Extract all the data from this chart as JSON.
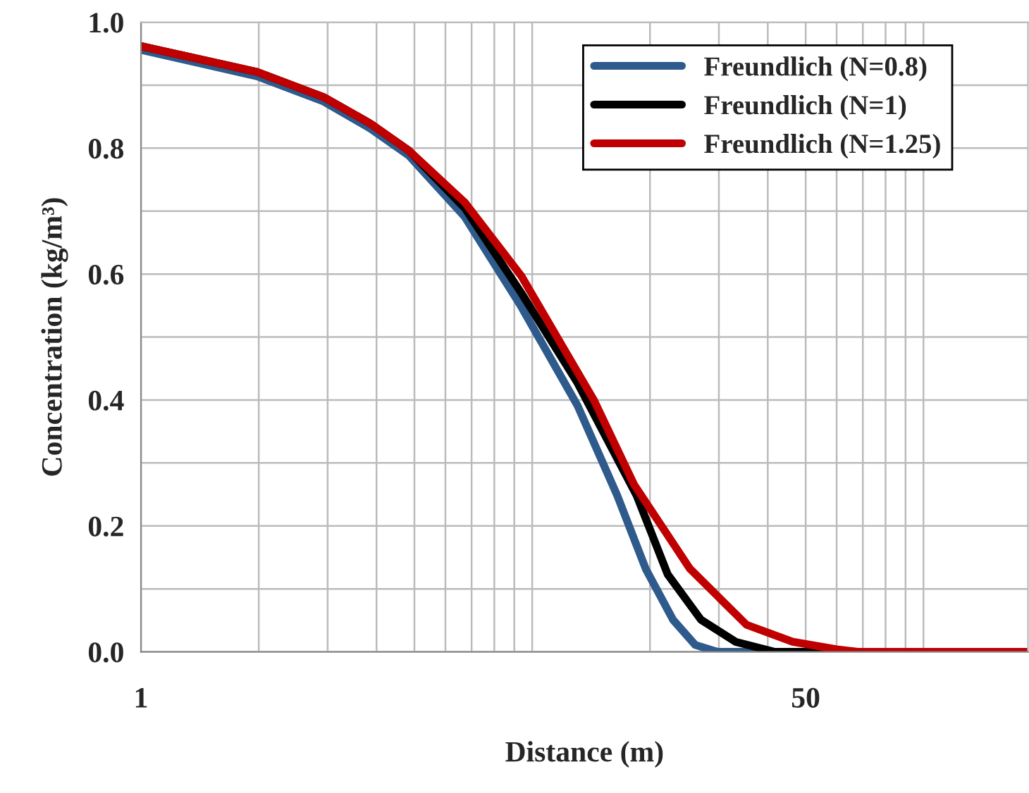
{
  "chart_data": {
    "type": "line",
    "xlabel": "Distance (m)",
    "ylabel": "Concentration (kg/m³)",
    "log": "x",
    "grid": true,
    "legend": "top right",
    "line_style": "solid",
    "marker": "none",
    "xlim": [
      1,
      185
    ],
    "ylim": [
      0,
      1.0
    ],
    "xticks": [
      1,
      {
        "value": 2,
        "label": null
      },
      {
        "value": 3,
        "label": null
      },
      {
        "value": 4,
        "label": null
      },
      {
        "value": 5,
        "label": null
      },
      {
        "value": 6,
        "label": null
      },
      {
        "value": 7,
        "label": null
      },
      {
        "value": 8,
        "label": null
      },
      {
        "value": 9,
        "label": null
      },
      {
        "value": 10,
        "label": null
      },
      {
        "value": 20,
        "label": null
      },
      {
        "value": 30,
        "label": null
      },
      {
        "value": 40,
        "label": null
      },
      50,
      {
        "value": 60,
        "label": null
      },
      {
        "value": 70,
        "label": null
      },
      {
        "value": 80,
        "label": null
      },
      {
        "value": 90,
        "label": null
      },
      {
        "value": 100,
        "label": null
      }
    ],
    "yticks": [
      {
        "value": 0,
        "label": "0.0"
      },
      {
        "value": 0.1,
        "label": null
      },
      {
        "value": 0.2,
        "label": "0.2"
      },
      {
        "value": 0.3,
        "label": null
      },
      {
        "value": 0.4,
        "label": "0.4"
      },
      {
        "value": 0.5,
        "label": null
      },
      {
        "value": 0.6,
        "label": "0.6"
      },
      {
        "value": 0.7,
        "label": null
      },
      {
        "value": 0.8,
        "label": "0.8"
      },
      {
        "value": 0.9,
        "label": null
      },
      {
        "value": 1.0,
        "label": "1.0"
      }
    ],
    "series": [
      {
        "name": "Freundlich (N=0.8)",
        "color": "#2e5a8c",
        "x": [
          1,
          1.98,
          2.93,
          3.86,
          4.84,
          6.72,
          9.38,
          13.06,
          16.5,
          19.5,
          22.9,
          26.1,
          29.8,
          185
        ],
        "values": [
          0.956,
          0.914,
          0.874,
          0.831,
          0.788,
          0.691,
          0.548,
          0.391,
          0.248,
          0.132,
          0.051,
          0.011,
          0,
          0
        ]
      },
      {
        "name": "Freundlich (N=1)",
        "color": "#000000",
        "x": [
          1,
          1.98,
          2.93,
          3.86,
          4.84,
          6.72,
          9.38,
          13.06,
          18.5,
          22.2,
          27.0,
          33.1,
          41.7,
          185
        ],
        "values": [
          0.962,
          0.921,
          0.881,
          0.839,
          0.796,
          0.705,
          0.57,
          0.427,
          0.248,
          0.123,
          0.051,
          0.016,
          0,
          0
        ]
      },
      {
        "name": "Freundlich (N=1.25)",
        "color": "#c00000",
        "x": [
          1,
          1.98,
          2.93,
          3.86,
          4.84,
          6.72,
          9.38,
          14.4,
          18.2,
          25.3,
          35.3,
          46.3,
          60,
          68,
          185
        ],
        "values": [
          0.962,
          0.921,
          0.881,
          0.839,
          0.796,
          0.714,
          0.597,
          0.399,
          0.266,
          0.132,
          0.043,
          0.016,
          0.004,
          0,
          0
        ]
      }
    ]
  }
}
